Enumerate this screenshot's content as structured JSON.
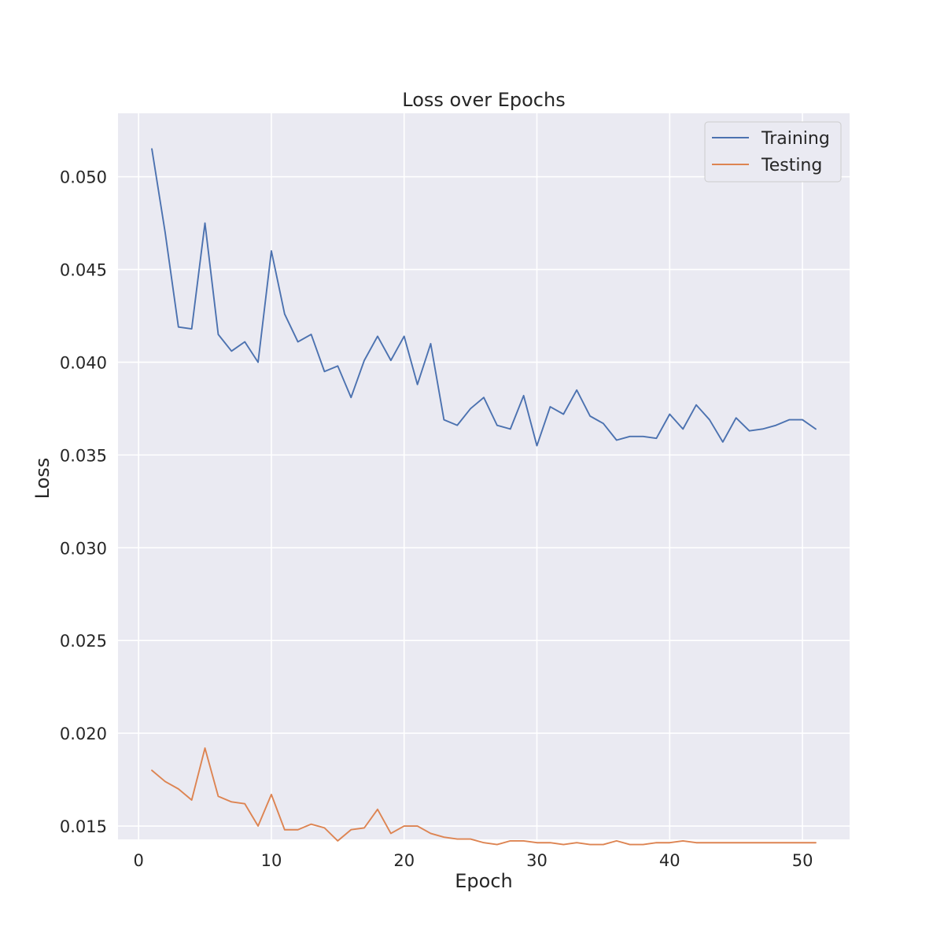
{
  "chart_data": {
    "type": "line",
    "title": "Loss over Epochs",
    "xlabel": "Epoch",
    "ylabel": "Loss",
    "xlim": [
      -1.55,
      53.55
    ],
    "ylim": [
      0.01428,
      0.05342
    ],
    "xticks": [
      0,
      10,
      20,
      30,
      40,
      50
    ],
    "yticks": [
      0.015,
      0.02,
      0.025,
      0.03,
      0.035,
      0.04,
      0.045,
      0.05
    ],
    "ytick_labels": [
      "0.015",
      "0.020",
      "0.025",
      "0.030",
      "0.035",
      "0.040",
      "0.045",
      "0.050"
    ],
    "grid": true,
    "legend_position": "top-right",
    "background": "#eaeaf2",
    "x": [
      1,
      2,
      3,
      4,
      5,
      6,
      7,
      8,
      9,
      10,
      11,
      12,
      13,
      14,
      15,
      16,
      17,
      18,
      19,
      20,
      21,
      22,
      23,
      24,
      25,
      26,
      27,
      28,
      29,
      30,
      31,
      32,
      33,
      34,
      35,
      36,
      37,
      38,
      39,
      40,
      41,
      42,
      43,
      44,
      45,
      46,
      47,
      48,
      49,
      50,
      51
    ],
    "series": [
      {
        "name": "Training",
        "color": "#4c72b0",
        "values": [
          0.0515,
          0.047,
          0.0419,
          0.0418,
          0.0475,
          0.0415,
          0.0406,
          0.0411,
          0.04,
          0.046,
          0.0426,
          0.0411,
          0.0415,
          0.0395,
          0.0398,
          0.0381,
          0.0401,
          0.0414,
          0.0401,
          0.0414,
          0.0388,
          0.041,
          0.0369,
          0.0366,
          0.0375,
          0.0381,
          0.0366,
          0.0364,
          0.0382,
          0.0355,
          0.0376,
          0.0372,
          0.0385,
          0.0371,
          0.0367,
          0.0358,
          0.036,
          0.036,
          0.0359,
          0.0372,
          0.0364,
          0.0377,
          0.0369,
          0.0357,
          0.037,
          0.0363,
          0.0364,
          0.0366,
          0.0369,
          0.0369,
          0.0364
        ]
      },
      {
        "name": "Testing",
        "color": "#dd8452",
        "values": [
          0.018,
          0.0174,
          0.017,
          0.0164,
          0.0192,
          0.0166,
          0.0163,
          0.0162,
          0.015,
          0.0167,
          0.0148,
          0.0148,
          0.0151,
          0.0149,
          0.0142,
          0.0148,
          0.0149,
          0.0159,
          0.0146,
          0.015,
          0.015,
          0.0146,
          0.0144,
          0.0143,
          0.0143,
          0.0141,
          0.014,
          0.0142,
          0.0142,
          0.0141,
          0.0141,
          0.014,
          0.0141,
          0.014,
          0.014,
          0.0142,
          0.014,
          0.014,
          0.0141,
          0.0141,
          0.0142,
          0.0141,
          0.0141,
          0.0141,
          0.0141,
          0.0141,
          0.0141,
          0.0141,
          0.0141,
          0.0141,
          0.0141
        ]
      }
    ]
  }
}
